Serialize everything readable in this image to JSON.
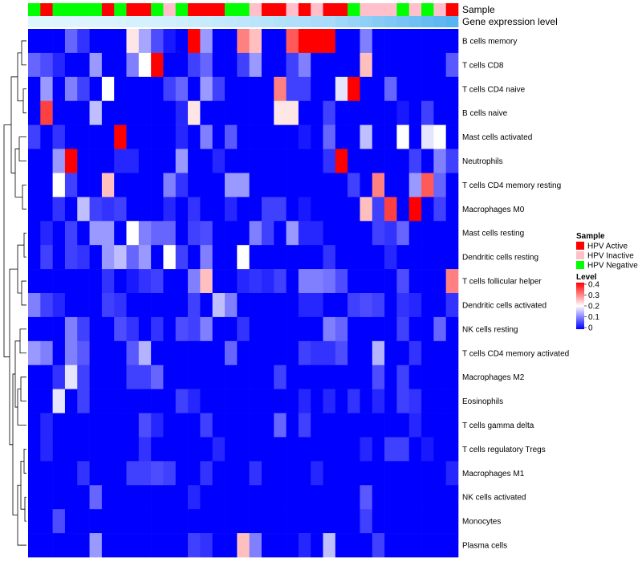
{
  "chart_data": {
    "type": "heatmap",
    "annotation_tracks": [
      "Sample",
      "Gene expression level"
    ],
    "rows": [
      "B cells memory",
      "T cells CD8",
      "T cells CD4 naive",
      "B cells naive",
      "Mast cells activated",
      "Neutrophils",
      "T cells CD4 memory resting",
      "Macrophages M0",
      "Mast cells resting",
      "Dendritic cells resting",
      "T cells follicular helper",
      "Dendritic cells activated",
      "NK cells resting",
      "T cells CD4 memory activated",
      "Macrophages M2",
      "Eosinophils",
      "T cells gamma delta",
      "T cells regulatory  Tregs",
      "Macrophages M1",
      "NK cells activated",
      "Monocytes",
      "Plasma cells"
    ],
    "columns": 35,
    "sample_groups": [
      "Negative",
      "Active",
      "Negative",
      "Negative",
      "Negative",
      "Negative",
      "Active",
      "Negative",
      "Active",
      "Active",
      "Negative",
      "Inactive",
      "Negative",
      "Active",
      "Active",
      "Active",
      "Negative",
      "Negative",
      "Inactive",
      "Active",
      "Active",
      "Inactive",
      "Active",
      "Inactive",
      "Active",
      "Active",
      "Negative",
      "Inactive",
      "Inactive",
      "Inactive",
      "Negative",
      "Inactive",
      "Negative",
      "Inactive",
      "Active"
    ],
    "gene_expression_level": [
      0.05,
      0.05,
      0.06,
      0.06,
      0.07,
      0.08,
      0.09,
      0.1,
      0.11,
      0.12,
      0.13,
      0.14,
      0.16,
      0.18,
      0.2,
      0.22,
      0.24,
      0.26,
      0.28,
      0.3,
      0.32,
      0.34,
      0.36,
      0.38,
      0.4,
      0.45,
      0.5,
      0.55,
      0.6,
      0.65,
      0.7,
      0.75,
      0.8,
      0.85,
      0.9
    ],
    "values": [
      [
        0,
        0,
        0,
        0.08,
        0.04,
        0,
        0,
        0,
        0.22,
        0.13,
        0.06,
        0.02,
        0,
        0.4,
        0.12,
        0,
        0,
        0.3,
        0.25,
        0,
        0,
        0.33,
        0.4,
        0.4,
        0.4,
        0,
        0,
        0.1,
        0,
        0,
        0,
        0,
        0,
        0,
        0
      ],
      [
        0.08,
        0.06,
        0.03,
        0,
        0,
        0.12,
        0,
        0,
        0.1,
        0.2,
        0.4,
        0,
        0,
        0.05,
        0.08,
        0,
        0,
        0.05,
        0.12,
        0,
        0,
        0.05,
        0.1,
        0,
        0,
        0,
        0,
        0.25,
        0,
        0,
        0,
        0,
        0,
        0,
        0.07
      ],
      [
        0,
        0.12,
        0,
        0.1,
        0.05,
        0,
        0.2,
        0,
        0,
        0,
        0,
        0.05,
        0.08,
        0,
        0.12,
        0.05,
        0,
        0,
        0,
        0,
        0.3,
        0.05,
        0.05,
        0,
        0,
        0.18,
        0.4,
        0,
        0,
        0.08,
        0,
        0,
        0,
        0,
        0
      ],
      [
        0,
        0.35,
        0,
        0,
        0,
        0.15,
        0,
        0,
        0,
        0,
        0,
        0,
        0.03,
        0.22,
        0,
        0,
        0,
        0,
        0,
        0,
        0.22,
        0.22,
        0,
        0,
        0.05,
        0,
        0,
        0,
        0,
        0,
        0.02,
        0,
        0.05,
        0,
        0
      ],
      [
        0.05,
        0,
        0.04,
        0,
        0,
        0,
        0,
        0.4,
        0,
        0,
        0,
        0,
        0.03,
        0,
        0.1,
        0,
        0.07,
        0,
        0,
        0,
        0,
        0,
        0.02,
        0,
        0.08,
        0,
        0,
        0.15,
        0,
        0,
        0.2,
        0,
        0.18,
        0.2,
        0
      ],
      [
        0,
        0,
        0.12,
        0.4,
        0,
        0,
        0,
        0.03,
        0.03,
        0,
        0,
        0,
        0.12,
        0,
        0,
        0.03,
        0,
        0,
        0,
        0,
        0,
        0,
        0,
        0,
        0.04,
        0.4,
        0,
        0,
        0,
        0,
        0,
        0.05,
        0,
        0.1,
        0.05
      ],
      [
        0,
        0,
        0.2,
        0.05,
        0,
        0,
        0.25,
        0,
        0,
        0,
        0,
        0.1,
        0.04,
        0,
        0,
        0,
        0.12,
        0.12,
        0,
        0,
        0,
        0,
        0,
        0,
        0,
        0,
        0.05,
        0,
        0.3,
        0,
        0,
        0.12,
        0.33,
        0.08,
        0
      ],
      [
        0,
        0,
        0.04,
        0,
        0.15,
        0.05,
        0.04,
        0.05,
        0,
        0,
        0,
        0.03,
        0,
        0.04,
        0,
        0,
        0.03,
        0,
        0,
        0.05,
        0.05,
        0,
        0.02,
        0,
        0,
        0,
        0,
        0.25,
        0.05,
        0.35,
        0,
        0.4,
        0,
        0.05,
        0
      ],
      [
        0,
        0.03,
        0,
        0.05,
        0,
        0.12,
        0.12,
        0,
        0.2,
        0.1,
        0.08,
        0.08,
        0,
        0.05,
        0.06,
        0,
        0,
        0,
        0.1,
        0.05,
        0,
        0.12,
        0.03,
        0.03,
        0,
        0,
        0,
        0,
        0.05,
        0.04,
        0.08,
        0,
        0,
        0,
        0
      ],
      [
        0,
        0.05,
        0,
        0.05,
        0.04,
        0,
        0.12,
        0.15,
        0.08,
        0.12,
        0,
        0.2,
        0.05,
        0,
        0.1,
        0,
        0,
        0.2,
        0,
        0,
        0,
        0,
        0,
        0,
        0.04,
        0,
        0,
        0,
        0,
        0.03,
        0,
        0,
        0,
        0,
        0
      ],
      [
        0,
        0,
        0,
        0,
        0,
        0,
        0.04,
        0,
        0.02,
        0.04,
        0.05,
        0,
        0,
        0.1,
        0.25,
        0,
        0,
        0.03,
        0.04,
        0.03,
        0.05,
        0,
        0.1,
        0.1,
        0.09,
        0.06,
        0,
        0,
        0,
        0,
        0.06,
        0,
        0,
        0,
        0.3
      ],
      [
        0.1,
        0.05,
        0.03,
        0,
        0,
        0,
        0.05,
        0.04,
        0,
        0,
        0,
        0,
        0,
        0.05,
        0,
        0.15,
        0.1,
        0,
        0,
        0,
        0,
        0,
        0.03,
        0.03,
        0,
        0,
        0.05,
        0.06,
        0.05,
        0,
        0.04,
        0.03,
        0,
        0,
        0.04
      ],
      [
        0,
        0,
        0,
        0.1,
        0.05,
        0,
        0,
        0.06,
        0.04,
        0,
        0.04,
        0,
        0.06,
        0.05,
        0.1,
        0,
        0,
        0.04,
        0,
        0,
        0,
        0,
        0,
        0,
        0.1,
        0.08,
        0,
        0,
        0,
        0,
        0.05,
        0,
        0,
        0.08,
        0
      ],
      [
        0.12,
        0.1,
        0,
        0.1,
        0.07,
        0,
        0,
        0,
        0.07,
        0.14,
        0,
        0,
        0,
        0,
        0,
        0,
        0.08,
        0,
        0,
        0,
        0,
        0,
        0.05,
        0.04,
        0.04,
        0.06,
        0,
        0,
        0.14,
        0,
        0,
        0.04,
        0,
        0,
        0
      ],
      [
        0,
        0,
        0.04,
        0.18,
        0.05,
        0,
        0,
        0,
        0.05,
        0.05,
        0.08,
        0,
        0,
        0,
        0,
        0,
        0,
        0,
        0,
        0,
        0.05,
        0,
        0,
        0,
        0,
        0,
        0,
        0,
        0.06,
        0,
        0.05,
        0,
        0,
        0,
        0
      ],
      [
        0,
        0,
        0.18,
        0,
        0.05,
        0,
        0,
        0,
        0,
        0,
        0,
        0,
        0.05,
        0.03,
        0,
        0,
        0,
        0,
        0,
        0,
        0,
        0,
        0.03,
        0,
        0.03,
        0,
        0.04,
        0,
        0.03,
        0,
        0.05,
        0.04,
        0,
        0,
        0
      ],
      [
        0,
        0.03,
        0,
        0,
        0,
        0,
        0,
        0,
        0,
        0.06,
        0.03,
        0,
        0,
        0,
        0.05,
        0,
        0,
        0,
        0,
        0,
        0.08,
        0,
        0.05,
        0,
        0,
        0,
        0,
        0,
        0,
        0,
        0,
        0.03,
        0,
        0,
        0
      ],
      [
        0,
        0.03,
        0,
        0,
        0,
        0,
        0,
        0,
        0,
        0.04,
        0,
        0,
        0,
        0,
        0,
        0.03,
        0,
        0,
        0,
        0,
        0,
        0,
        0,
        0,
        0,
        0,
        0,
        0.03,
        0,
        0.05,
        0.05,
        0,
        0.02,
        0,
        0
      ],
      [
        0,
        0,
        0,
        0,
        0.04,
        0,
        0,
        0,
        0.05,
        0.05,
        0.06,
        0.05,
        0,
        0,
        0.04,
        0,
        0,
        0,
        0.04,
        0,
        0,
        0,
        0,
        0.03,
        0,
        0,
        0,
        0,
        0,
        0,
        0,
        0,
        0,
        0,
        0.03
      ],
      [
        0,
        0,
        0,
        0,
        0,
        0.08,
        0,
        0,
        0,
        0,
        0,
        0,
        0,
        0.03,
        0,
        0,
        0,
        0,
        0,
        0,
        0,
        0,
        0,
        0,
        0,
        0,
        0,
        0.07,
        0,
        0,
        0,
        0,
        0,
        0,
        0
      ],
      [
        0,
        0,
        0.06,
        0,
        0,
        0,
        0,
        0,
        0,
        0,
        0,
        0,
        0,
        0,
        0,
        0,
        0,
        0,
        0,
        0,
        0,
        0,
        0,
        0,
        0,
        0,
        0,
        0.05,
        0,
        0,
        0,
        0,
        0,
        0,
        0
      ],
      [
        0,
        0,
        0,
        0,
        0,
        0.12,
        0,
        0,
        0,
        0,
        0,
        0,
        0,
        0.05,
        0.04,
        0,
        0,
        0.25,
        0.1,
        0,
        0,
        0,
        0.03,
        0,
        0.15,
        0,
        0,
        0,
        0.05,
        0,
        0,
        0,
        0,
        0,
        0
      ]
    ],
    "legend": {
      "sample": {
        "title": "Sample",
        "entries": [
          {
            "label": "HPV Active",
            "color": "#ff0000"
          },
          {
            "label": "HPV Inactive",
            "color": "#ffc0cb"
          },
          {
            "label": "HPV Negative",
            "color": "#00ff00"
          }
        ]
      },
      "level": {
        "title": "Level",
        "range": [
          0,
          0.4
        ],
        "ticks": [
          "0.4",
          "0.3",
          "0.2",
          "0.1",
          "0"
        ],
        "colors": [
          "#0000ff",
          "#ffffff",
          "#ff0000"
        ]
      }
    },
    "expression_colors": [
      "#e0f6ff",
      "#56b4f0"
    ]
  }
}
